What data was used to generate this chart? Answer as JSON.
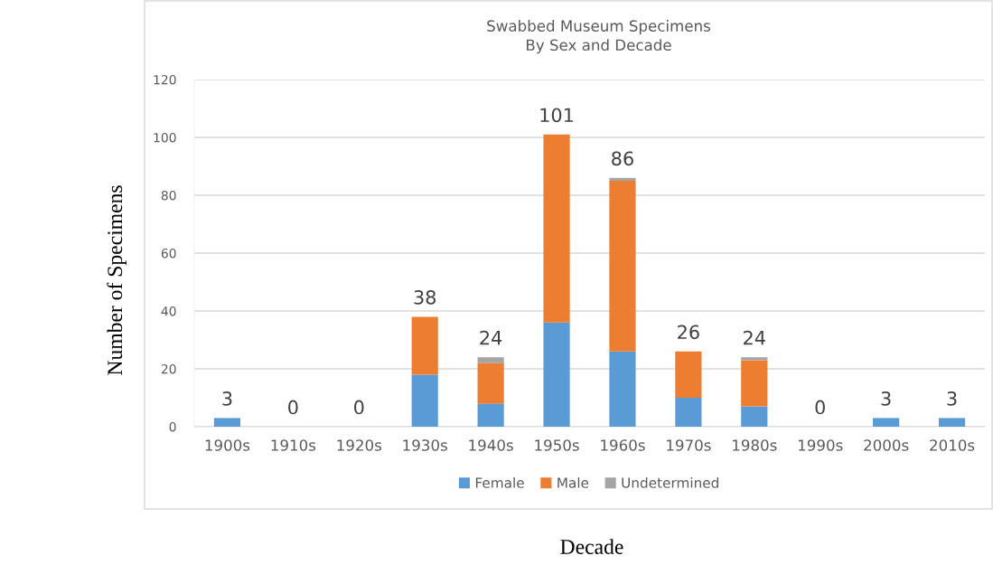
{
  "chart_data": {
    "type": "bar",
    "title": "Swabbed Museum Specimens\nBy Sex and Decade",
    "xlabel": "Decade",
    "ylabel": "Number of Specimens",
    "categories": [
      "1900s",
      "1910s",
      "1920s",
      "1930s",
      "1940s",
      "1950s",
      "1960s",
      "1970s",
      "1980s",
      "1990s",
      "2000s",
      "2010s"
    ],
    "stacked": true,
    "series": [
      {
        "name": "Female",
        "color": "#5b9bd5",
        "values": [
          3,
          0,
          0,
          18,
          8,
          36,
          26,
          10,
          7,
          0,
          3,
          3
        ]
      },
      {
        "name": "Male",
        "color": "#ed7d31",
        "values": [
          0,
          0,
          0,
          20,
          14,
          65,
          59,
          16,
          16,
          0,
          0,
          0
        ]
      },
      {
        "name": "Undetermined",
        "color": "#a5a5a5",
        "values": [
          0,
          0,
          0,
          0,
          2,
          0,
          1,
          0,
          1,
          0,
          0,
          0
        ]
      }
    ],
    "totals": [
      "3",
      "0",
      "0",
      "38",
      "24",
      "101",
      "86",
      "26",
      "24",
      "0",
      "3",
      "3"
    ],
    "ylim": [
      0,
      120
    ],
    "yticks": [
      0,
      20,
      40,
      60,
      80,
      100,
      120
    ],
    "grid": "y",
    "legend": "bottom"
  }
}
